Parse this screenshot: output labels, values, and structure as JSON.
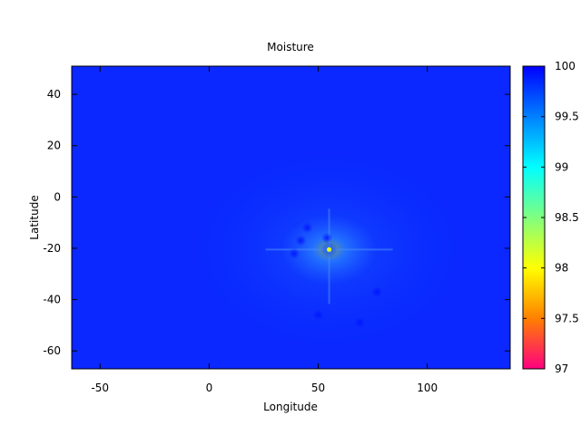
{
  "chart_data": {
    "type": "heatmap",
    "title": "Moisture",
    "xlabel": "Longitude",
    "ylabel": "Latitude",
    "xlim": [
      -63,
      138
    ],
    "ylim": [
      -67,
      51
    ],
    "xticks": [
      -50,
      0,
      50,
      100
    ],
    "yticks": [
      -60,
      -40,
      -20,
      0,
      20,
      40
    ],
    "colorbar": {
      "range": [
        97,
        100
      ],
      "ticks": [
        "97",
        "97.5",
        "98",
        "98.5",
        "99",
        "99.5",
        "100"
      ],
      "tick_values": [
        97,
        97.5,
        98,
        98.5,
        99,
        99.5,
        100
      ],
      "colormap": [
        "#ff0080",
        "#ff8000",
        "#ffff00",
        "#80ff80",
        "#00ffff",
        "#0080ff",
        "#0000ff"
      ]
    },
    "background_value": 99.97,
    "features": [
      {
        "lon": 55,
        "lat": -20.5,
        "value": 98.0
      },
      {
        "lon": 45,
        "lat": -12,
        "value": 99.93
      },
      {
        "lon": 42,
        "lat": -17,
        "value": 99.93
      },
      {
        "lon": 39,
        "lat": -22,
        "value": 99.93
      },
      {
        "lon": 54,
        "lat": -16,
        "value": 99.93
      },
      {
        "lon": 77,
        "lat": -37,
        "value": 99.95
      },
      {
        "lon": 50,
        "lat": -46,
        "value": 99.95
      },
      {
        "lon": 69,
        "lat": -49,
        "value": 99.95
      }
    ],
    "grid": false,
    "legend": "none"
  }
}
